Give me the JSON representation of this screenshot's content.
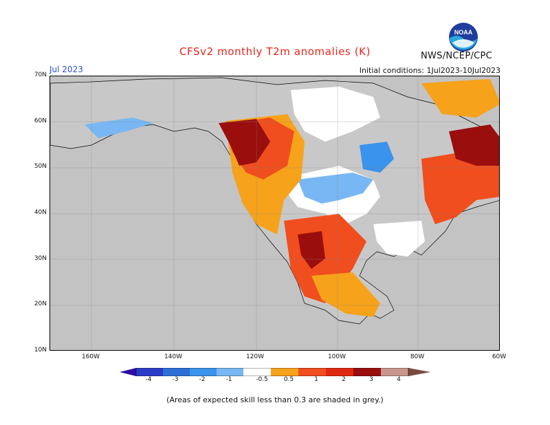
{
  "header": {
    "title": "CFSv2 monthly T2m anomalies (K)",
    "org": "NWS/NCEP/CPC",
    "month": "Jul 2023",
    "initial_conditions": "Initial conditions: 1Jul2023-10Jul2023",
    "logo_text": "NOAA"
  },
  "map": {
    "lat_labels": [
      "70N",
      "60N",
      "50N",
      "40N",
      "30N",
      "20N",
      "10N"
    ],
    "lon_labels": [
      "160W",
      "140W",
      "120W",
      "100W",
      "80W",
      "60W"
    ]
  },
  "colorbar": {
    "labels": [
      "-4",
      "-3",
      "-2",
      "-1",
      "-0.5",
      "0.5",
      "1",
      "2",
      "3",
      "4"
    ],
    "colors": [
      "#2d0fa3",
      "#2b3cc8",
      "#2c6fd6",
      "#3a93ec",
      "#78b7f3",
      "#ffffff",
      "#f7a21b",
      "#f04e1e",
      "#e02a10",
      "#9a0e0e",
      "#c8968c",
      "#7a4a40"
    ],
    "grey": "#c3c3c3"
  },
  "footnote": "(Areas of expected skill less than 0.3 are shaded in grey.)"
}
